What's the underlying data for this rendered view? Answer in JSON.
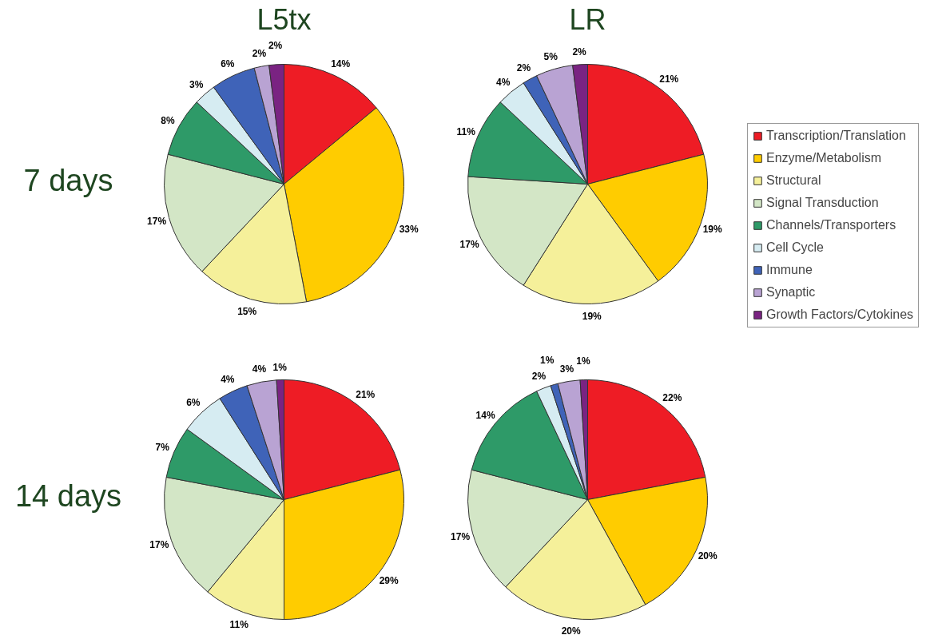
{
  "chart_data": [
    {
      "type": "pie",
      "title": "L5tx",
      "ylabel": "7 days",
      "legend": "right",
      "categories": [
        "Transcription/Translation",
        "Enzyme/Metabolism",
        "Structural",
        "Signal Transduction",
        "Channels/Transporters",
        "Cell Cycle",
        "Immune",
        "Synaptic",
        "Growth Factors/Cytokines"
      ],
      "values": [
        14,
        33,
        15,
        17,
        8,
        3,
        6,
        2,
        2
      ],
      "value_labels": [
        "14%",
        "33%",
        "15%",
        "17%",
        "8%",
        "3%",
        "6%",
        "2%",
        "2%"
      ],
      "colors": [
        "#ee1c25",
        "#ffcc00",
        "#f5f09a",
        "#d3e6c6",
        "#2e9a68",
        "#d6ecf2",
        "#3f63b8",
        "#b9a3d3",
        "#7a2382"
      ]
    },
    {
      "type": "pie",
      "title": "LR",
      "values": [
        21,
        19,
        19,
        17,
        11,
        4,
        2,
        5,
        2
      ],
      "value_labels": [
        "21%",
        "19%",
        "19%",
        "17%",
        "11%",
        "4%",
        "2%",
        "5%",
        "2%"
      ],
      "colors": [
        "#ee1c25",
        "#ffcc00",
        "#f5f09a",
        "#d3e6c6",
        "#2e9a68",
        "#d6ecf2",
        "#3f63b8",
        "#b9a3d3",
        "#7a2382"
      ]
    },
    {
      "type": "pie",
      "ylabel": "14 days",
      "values": [
        21,
        29,
        11,
        17,
        7,
        6,
        4,
        4,
        1
      ],
      "value_labels": [
        "21%",
        "29%",
        "11%",
        "17%",
        "7%",
        "6%",
        "4%",
        "4%",
        "1%"
      ],
      "colors": [
        "#ee1c25",
        "#ffcc00",
        "#f5f09a",
        "#d3e6c6",
        "#2e9a68",
        "#d6ecf2",
        "#3f63b8",
        "#b9a3d3",
        "#7a2382"
      ]
    },
    {
      "type": "pie",
      "values": [
        22,
        20,
        20,
        17,
        14,
        2,
        1,
        3,
        1
      ],
      "value_labels": [
        "22%",
        "20%",
        "20%",
        "17%",
        "14%",
        "2%",
        "1%",
        "3%",
        "1%"
      ],
      "colors": [
        "#ee1c25",
        "#ffcc00",
        "#f5f09a",
        "#d3e6c6",
        "#2e9a68",
        "#d6ecf2",
        "#3f63b8",
        "#b9a3d3",
        "#7a2382"
      ]
    }
  ]
}
